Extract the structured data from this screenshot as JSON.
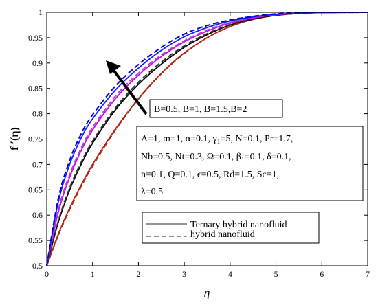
{
  "chart_data": {
    "type": "line",
    "xlabel": "η",
    "ylabel": "f ′(η)",
    "xlim": [
      0,
      7
    ],
    "ylim": [
      0.5,
      1
    ],
    "xticks": [
      0,
      1,
      2,
      3,
      4,
      5,
      6,
      7
    ],
    "yticks": [
      0.5,
      0.55,
      0.6,
      0.65,
      0.7,
      0.75,
      0.8,
      0.85,
      0.9,
      0.95,
      1
    ],
    "grid": false,
    "series": [
      {
        "group": "ternary",
        "color": "#e01010",
        "dash": "solid",
        "x": [
          0,
          0.25,
          0.5,
          0.75,
          1,
          1.5,
          2,
          2.5,
          3,
          3.5,
          4,
          4.5,
          5,
          5.5,
          6,
          7
        ],
        "y": [
          0.5,
          0.562,
          0.614,
          0.659,
          0.7,
          0.77,
          0.83,
          0.88,
          0.92,
          0.95,
          0.972,
          0.986,
          0.994,
          0.998,
          0.9995,
          1.0
        ]
      },
      {
        "group": "hybrid",
        "color": "#8b3a1a",
        "dash": "dashed",
        "x": [
          0,
          0.25,
          0.5,
          0.75,
          1,
          1.5,
          2,
          2.5,
          3,
          3.5,
          4,
          4.5,
          5,
          5.5,
          6,
          7
        ],
        "y": [
          0.5,
          0.56,
          0.611,
          0.656,
          0.697,
          0.768,
          0.829,
          0.879,
          0.919,
          0.95,
          0.972,
          0.986,
          0.994,
          0.998,
          0.9995,
          1.0
        ]
      },
      {
        "group": "ternary",
        "color": "#000000",
        "dash": "solid",
        "x": [
          0,
          0.25,
          0.5,
          0.75,
          1,
          1.5,
          2,
          2.5,
          3,
          3.5,
          4,
          4.5,
          5,
          5.5,
          6,
          7
        ],
        "y": [
          0.5,
          0.585,
          0.65,
          0.7,
          0.742,
          0.808,
          0.858,
          0.898,
          0.931,
          0.956,
          0.975,
          0.987,
          0.994,
          0.998,
          0.9995,
          1.0
        ]
      },
      {
        "group": "hybrid",
        "color": "#333333",
        "dash": "dashed",
        "x": [
          0,
          0.25,
          0.5,
          0.75,
          1,
          1.5,
          2,
          2.5,
          3,
          3.5,
          4,
          4.5,
          5,
          5.5,
          6,
          7
        ],
        "y": [
          0.5,
          0.588,
          0.654,
          0.704,
          0.746,
          0.812,
          0.862,
          0.902,
          0.934,
          0.958,
          0.976,
          0.988,
          0.995,
          0.998,
          0.9995,
          1.0
        ]
      },
      {
        "group": "ternary",
        "color": "#e000e0",
        "dash": "solid",
        "x": [
          0,
          0.25,
          0.5,
          0.75,
          1,
          1.5,
          2,
          2.5,
          3,
          3.5,
          4,
          4.5,
          5,
          5.5,
          6,
          7
        ],
        "y": [
          0.5,
          0.605,
          0.675,
          0.727,
          0.768,
          0.83,
          0.876,
          0.913,
          0.942,
          0.963,
          0.979,
          0.989,
          0.995,
          0.998,
          0.9995,
          1.0
        ]
      },
      {
        "group": "hybrid",
        "color": "#9a4ae0",
        "dash": "dashed",
        "x": [
          0,
          0.25,
          0.5,
          0.75,
          1,
          1.5,
          2,
          2.5,
          3,
          3.5,
          4,
          4.5,
          5,
          5.5,
          6,
          7
        ],
        "y": [
          0.5,
          0.61,
          0.68,
          0.732,
          0.773,
          0.835,
          0.88,
          0.916,
          0.944,
          0.965,
          0.98,
          0.99,
          0.996,
          0.998,
          0.9995,
          1.0
        ]
      },
      {
        "group": "ternary",
        "color": "#1a1aff",
        "dash": "solid",
        "x": [
          0,
          0.25,
          0.5,
          0.75,
          1,
          1.5,
          2,
          2.5,
          3,
          3.5,
          4,
          4.5,
          5,
          5.5,
          6,
          7
        ],
        "y": [
          0.5,
          0.625,
          0.7,
          0.752,
          0.79,
          0.847,
          0.89,
          0.925,
          0.952,
          0.97,
          0.983,
          0.991,
          0.996,
          0.998,
          0.9995,
          1.0
        ]
      },
      {
        "group": "hybrid",
        "color": "#0000dd",
        "dash": "dashed",
        "x": [
          0,
          0.25,
          0.5,
          0.75,
          1,
          1.5,
          2,
          2.5,
          3,
          3.5,
          4,
          4.5,
          5,
          5.5,
          6,
          7
        ],
        "y": [
          0.5,
          0.632,
          0.708,
          0.76,
          0.798,
          0.855,
          0.897,
          0.931,
          0.957,
          0.974,
          0.985,
          0.992,
          0.997,
          0.999,
          0.9998,
          1.0
        ]
      }
    ],
    "annotations": {
      "arrow_label": "B=0.5, B=1, B=1.5,B=2",
      "params": [
        "A=1, m=1, α=0.1, γ₁=5, N=0.1, Pr=1.7,",
        "Nb=0.5, Nt=0.3, Ω=0.1, β₁=0.1, δ=0.1,",
        "n=0.1, Q=0.1, ϵ=0.5, Rd=1.5, Sc=1,",
        "λ=0.5"
      ]
    },
    "legend": {
      "placement": "lower-right",
      "entries": [
        {
          "label": "Ternary hybrid nanofluid",
          "dash": "solid",
          "color": "#555555"
        },
        {
          "label": "hybrid nanofluid",
          "dash": "dashed",
          "color": "#555555"
        }
      ]
    }
  }
}
